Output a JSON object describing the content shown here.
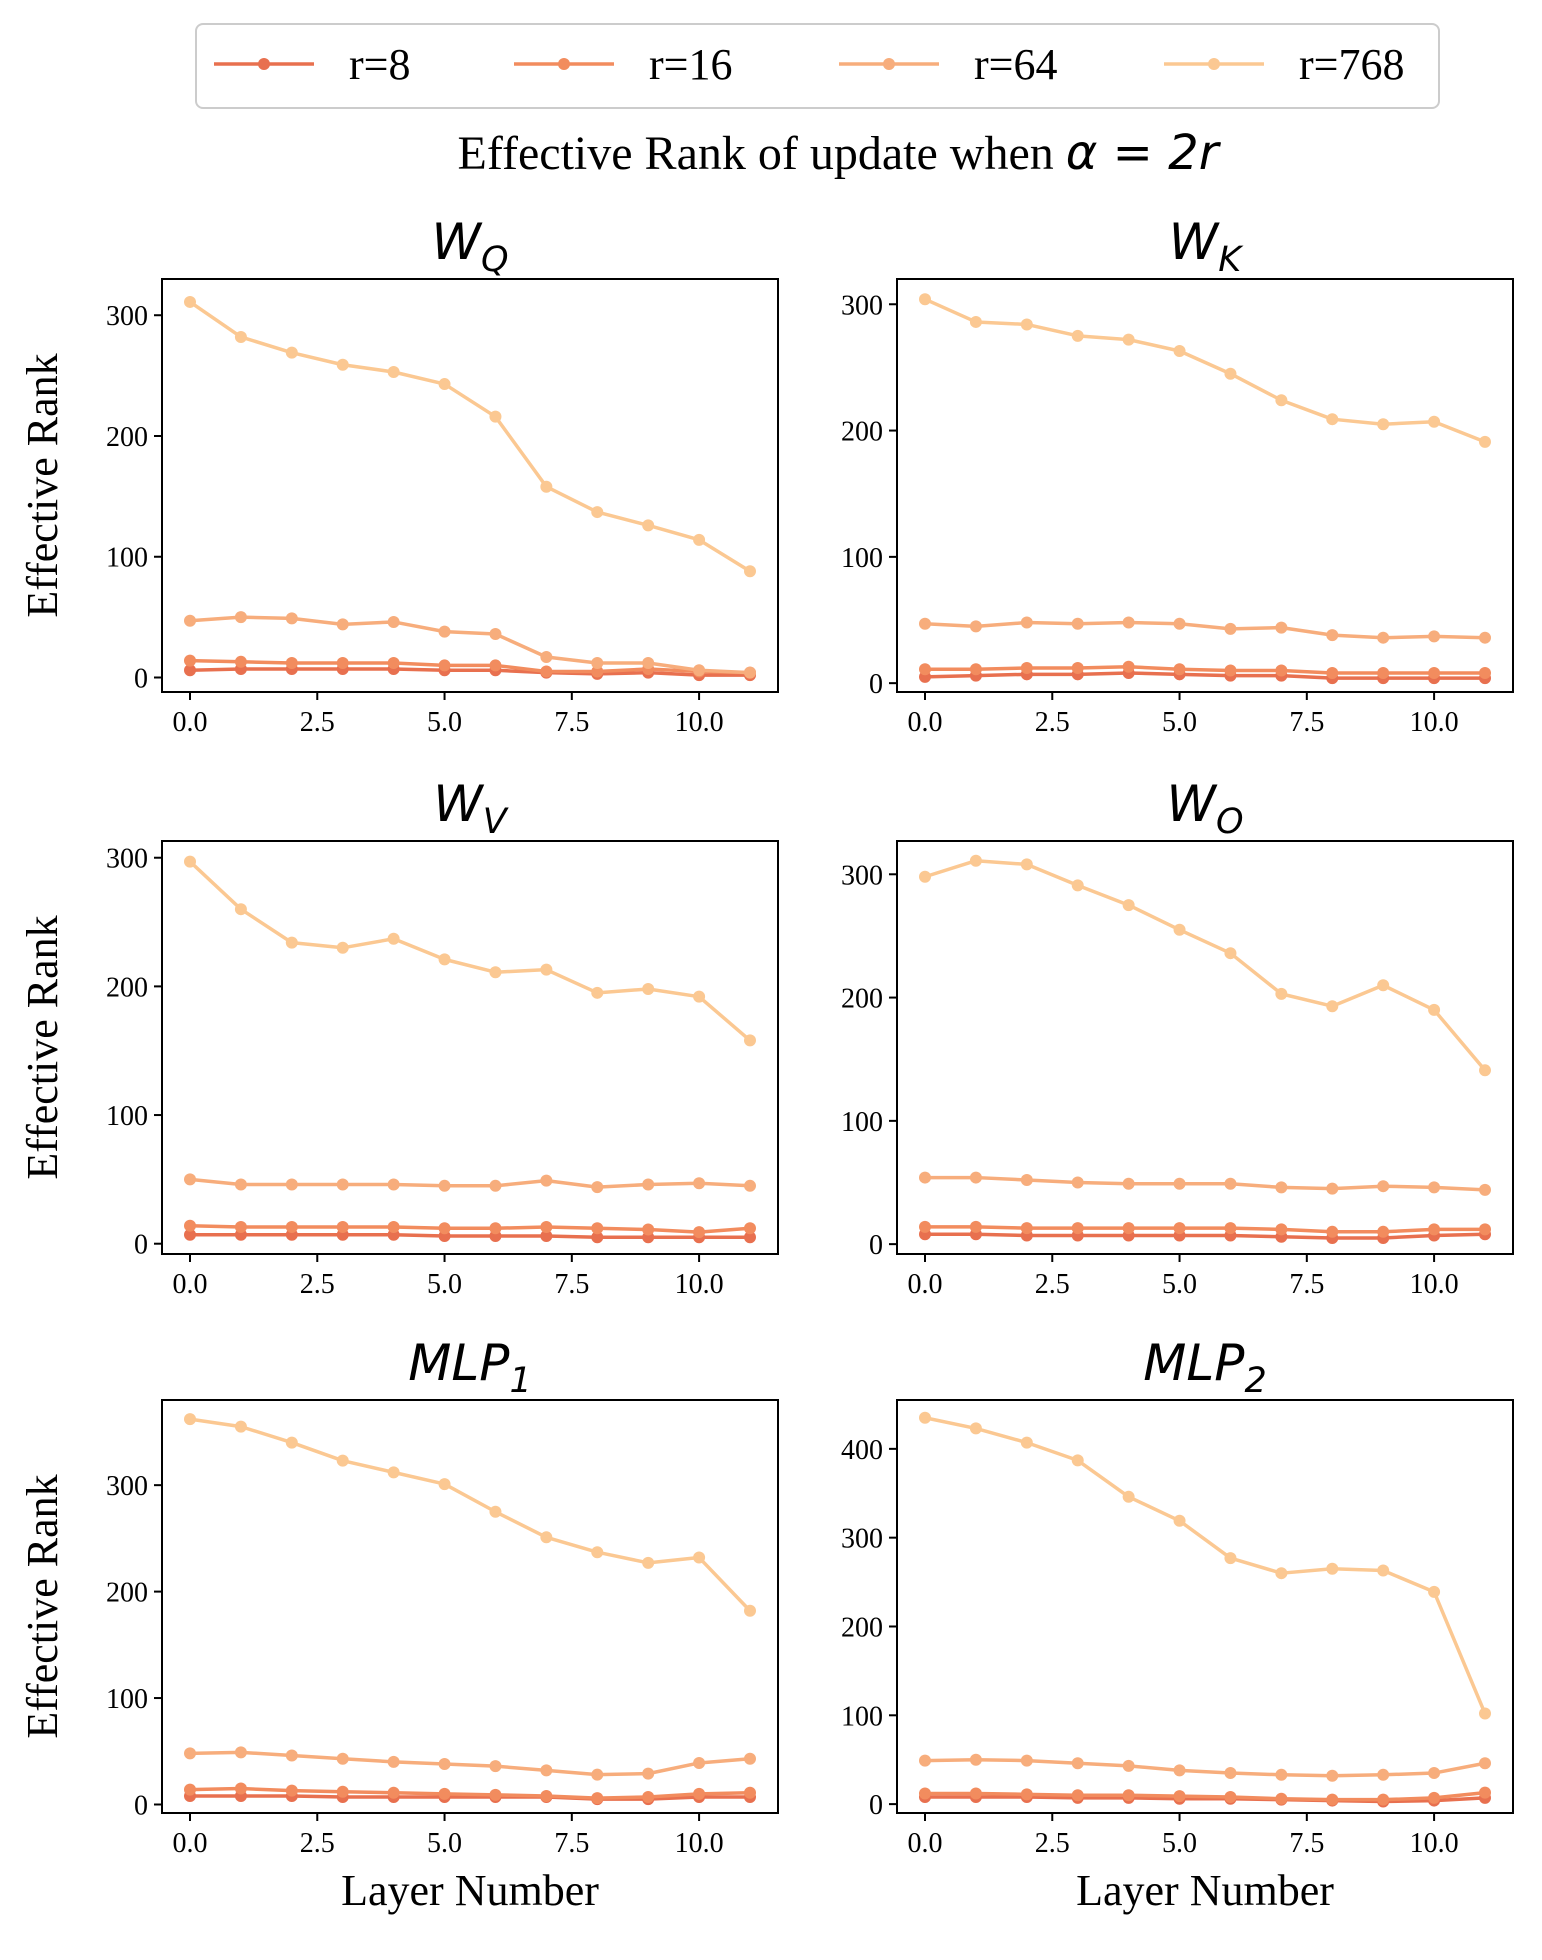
{
  "legend": [
    {
      "label": "r=8",
      "color": "#e8704f"
    },
    {
      "label": "r=16",
      "color": "#f28c5e"
    },
    {
      "label": "r=64",
      "color": "#f7ad7c"
    },
    {
      "label": "r=768",
      "color": "#fbc892"
    }
  ],
  "suptitle": {
    "text": "Effective Rank of update when ",
    "math": "α = 2r"
  },
  "chart_data": [
    {
      "type": "line",
      "title": {
        "base": "W",
        "sub": "Q"
      },
      "xlabel": "",
      "ylabel": "Effective Rank",
      "x": [
        0,
        1,
        2,
        3,
        4,
        5,
        6,
        7,
        8,
        9,
        10,
        11
      ],
      "xlim": [
        -0.55,
        11.55
      ],
      "ylim": [
        -12,
        330
      ],
      "xticks": [
        "0.0",
        "2.5",
        "5.0",
        "7.5",
        "10.0"
      ],
      "yticks": [
        "0",
        "100",
        "200",
        "300"
      ],
      "series": [
        {
          "name": "r=8",
          "values": [
            6,
            7,
            7,
            7,
            7,
            6,
            6,
            4,
            3,
            4,
            2,
            2
          ]
        },
        {
          "name": "r=16",
          "values": [
            14,
            13,
            12,
            12,
            12,
            10,
            10,
            5,
            5,
            7,
            5,
            4
          ]
        },
        {
          "name": "r=64",
          "values": [
            47,
            50,
            49,
            44,
            46,
            38,
            36,
            17,
            12,
            12,
            6,
            4
          ]
        },
        {
          "name": "r=768",
          "values": [
            311,
            282,
            269,
            259,
            253,
            243,
            216,
            158,
            137,
            126,
            114,
            88
          ]
        }
      ]
    },
    {
      "type": "line",
      "title": {
        "base": "W",
        "sub": "K"
      },
      "xlabel": "",
      "ylabel": "",
      "x": [
        0,
        1,
        2,
        3,
        4,
        5,
        6,
        7,
        8,
        9,
        10,
        11
      ],
      "xlim": [
        -0.55,
        11.55
      ],
      "ylim": [
        -7,
        320
      ],
      "xticks": [
        "0.0",
        "2.5",
        "5.0",
        "7.5",
        "10.0"
      ],
      "yticks": [
        "0",
        "100",
        "200",
        "300"
      ],
      "series": [
        {
          "name": "r=8",
          "values": [
            5,
            6,
            7,
            7,
            8,
            7,
            6,
            6,
            4,
            4,
            4,
            4
          ]
        },
        {
          "name": "r=16",
          "values": [
            11,
            11,
            12,
            12,
            13,
            11,
            10,
            10,
            8,
            8,
            8,
            8
          ]
        },
        {
          "name": "r=64",
          "values": [
            47,
            45,
            48,
            47,
            48,
            47,
            43,
            44,
            38,
            36,
            37,
            36
          ]
        },
        {
          "name": "r=768",
          "values": [
            304,
            286,
            284,
            275,
            272,
            263,
            245,
            224,
            209,
            205,
            207,
            191
          ]
        }
      ]
    },
    {
      "type": "line",
      "title": {
        "base": "W",
        "sub": "V"
      },
      "xlabel": "",
      "ylabel": "Effective Rank",
      "x": [
        0,
        1,
        2,
        3,
        4,
        5,
        6,
        7,
        8,
        9,
        10,
        11
      ],
      "xlim": [
        -0.55,
        11.55
      ],
      "ylim": [
        -8,
        313
      ],
      "xticks": [
        "0.0",
        "2.5",
        "5.0",
        "7.5",
        "10.0"
      ],
      "yticks": [
        "0",
        "100",
        "200",
        "300"
      ],
      "series": [
        {
          "name": "r=8",
          "values": [
            7,
            7,
            7,
            7,
            7,
            6,
            6,
            6,
            5,
            5,
            5,
            5
          ]
        },
        {
          "name": "r=16",
          "values": [
            14,
            13,
            13,
            13,
            13,
            12,
            12,
            13,
            12,
            11,
            9,
            12
          ]
        },
        {
          "name": "r=64",
          "values": [
            50,
            46,
            46,
            46,
            46,
            45,
            45,
            49,
            44,
            46,
            47,
            45
          ]
        },
        {
          "name": "r=768",
          "values": [
            297,
            260,
            234,
            230,
            237,
            221,
            211,
            213,
            195,
            198,
            192,
            158
          ]
        }
      ]
    },
    {
      "type": "line",
      "title": {
        "base": "W",
        "sub": "O"
      },
      "xlabel": "",
      "ylabel": "",
      "x": [
        0,
        1,
        2,
        3,
        4,
        5,
        6,
        7,
        8,
        9,
        10,
        11
      ],
      "xlim": [
        -0.55,
        11.55
      ],
      "ylim": [
        -8,
        327
      ],
      "xticks": [
        "0.0",
        "2.5",
        "5.0",
        "7.5",
        "10.0"
      ],
      "yticks": [
        "0",
        "100",
        "200",
        "300"
      ],
      "series": [
        {
          "name": "r=8",
          "values": [
            8,
            8,
            7,
            7,
            7,
            7,
            7,
            6,
            5,
            5,
            7,
            8
          ]
        },
        {
          "name": "r=16",
          "values": [
            14,
            14,
            13,
            13,
            13,
            13,
            13,
            12,
            10,
            10,
            12,
            12
          ]
        },
        {
          "name": "r=64",
          "values": [
            54,
            54,
            52,
            50,
            49,
            49,
            49,
            46,
            45,
            47,
            46,
            44
          ]
        },
        {
          "name": "r=768",
          "values": [
            298,
            311,
            308,
            291,
            275,
            255,
            236,
            203,
            193,
            210,
            190,
            141
          ]
        }
      ]
    },
    {
      "type": "line",
      "title": {
        "base": "MLP",
        "sub": "1"
      },
      "xlabel": "",
      "ylabel": "Effective Rank",
      "x": [
        0,
        1,
        2,
        3,
        4,
        5,
        6,
        7,
        8,
        9,
        10,
        11
      ],
      "xlim": [
        -0.55,
        11.55
      ],
      "ylim": [
        -8,
        380
      ],
      "xticks": [
        "0.0",
        "2.5",
        "5.0",
        "7.5",
        "10.0"
      ],
      "yticks": [
        "0",
        "100",
        "200",
        "300"
      ],
      "series": [
        {
          "name": "r=8",
          "values": [
            8,
            8,
            8,
            7,
            7,
            7,
            7,
            7,
            5,
            5,
            7,
            7
          ]
        },
        {
          "name": "r=16",
          "values": [
            14,
            15,
            13,
            12,
            11,
            10,
            9,
            8,
            6,
            7,
            10,
            11
          ]
        },
        {
          "name": "r=64",
          "values": [
            48,
            49,
            46,
            43,
            40,
            38,
            36,
            32,
            28,
            29,
            39,
            43
          ]
        },
        {
          "name": "r=768",
          "values": [
            362,
            355,
            340,
            323,
            312,
            301,
            275,
            251,
            237,
            227,
            232,
            182
          ]
        }
      ]
    },
    {
      "type": "line",
      "title": {
        "base": "MLP",
        "sub": "2"
      },
      "xlabel": "",
      "ylabel": "",
      "x": [
        0,
        1,
        2,
        3,
        4,
        5,
        6,
        7,
        8,
        9,
        10,
        11
      ],
      "xlim": [
        -0.55,
        11.55
      ],
      "ylim": [
        -10,
        455
      ],
      "xticks": [
        "0.0",
        "2.5",
        "5.0",
        "7.5",
        "10.0"
      ],
      "yticks": [
        "0",
        "100",
        "200",
        "300",
        "400"
      ],
      "series": [
        {
          "name": "r=8",
          "values": [
            8,
            8,
            8,
            7,
            7,
            6,
            6,
            5,
            4,
            3,
            4,
            7
          ]
        },
        {
          "name": "r=16",
          "values": [
            12,
            12,
            11,
            10,
            10,
            9,
            8,
            6,
            5,
            5,
            7,
            13
          ]
        },
        {
          "name": "r=64",
          "values": [
            49,
            50,
            49,
            46,
            43,
            38,
            35,
            33,
            32,
            33,
            35,
            46
          ]
        },
        {
          "name": "r=768",
          "values": [
            435,
            423,
            407,
            387,
            346,
            319,
            277,
            260,
            265,
            263,
            239,
            102
          ]
        }
      ]
    }
  ],
  "xlabel_bottom": "Layer Number"
}
